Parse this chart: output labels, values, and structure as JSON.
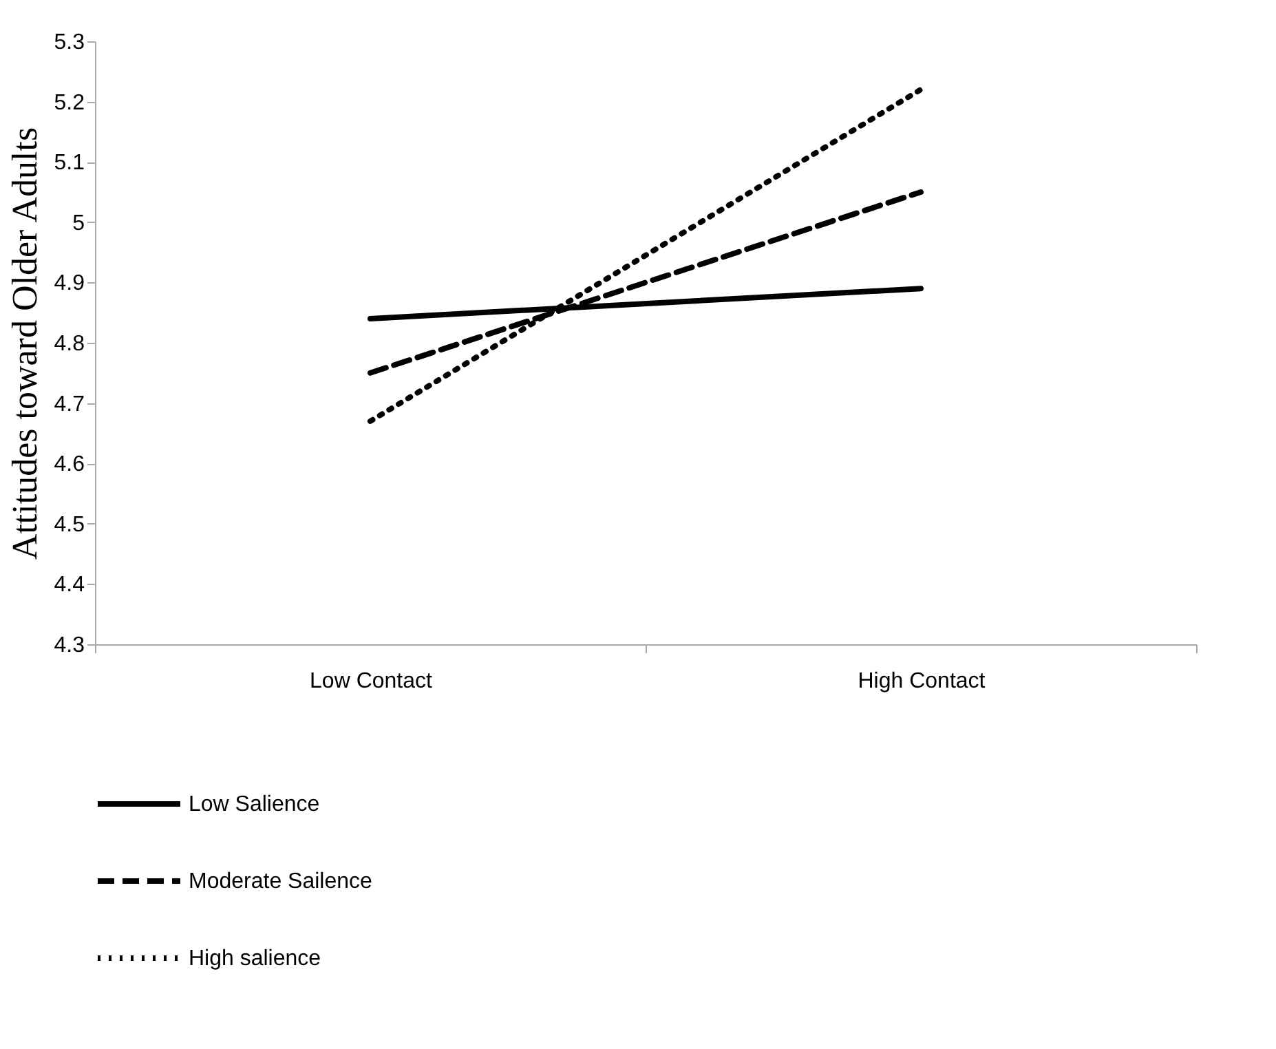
{
  "chart_data": {
    "type": "line",
    "ylabel": "Attitudes toward Older Adults",
    "categories": [
      "Low Contact",
      "High Contact"
    ],
    "series": [
      {
        "name": "Low Salience",
        "color": "#000000",
        "line_style": "solid",
        "values": [
          4.84,
          4.89
        ]
      },
      {
        "name": "Moderate Sailence",
        "color": "#000000",
        "line_style": "dashed",
        "values": [
          4.75,
          5.05
        ]
      },
      {
        "name": "High salience",
        "color": "#000000",
        "line_style": "dotted",
        "values": [
          4.67,
          5.22
        ]
      }
    ],
    "ylim": [
      4.3,
      5.3
    ],
    "yticks": [
      4.3,
      4.4,
      4.5,
      4.6,
      4.7,
      4.8,
      4.9,
      5,
      5.1,
      5.2,
      5.3
    ],
    "grid": false,
    "legend": "bottom",
    "marker": "none"
  }
}
